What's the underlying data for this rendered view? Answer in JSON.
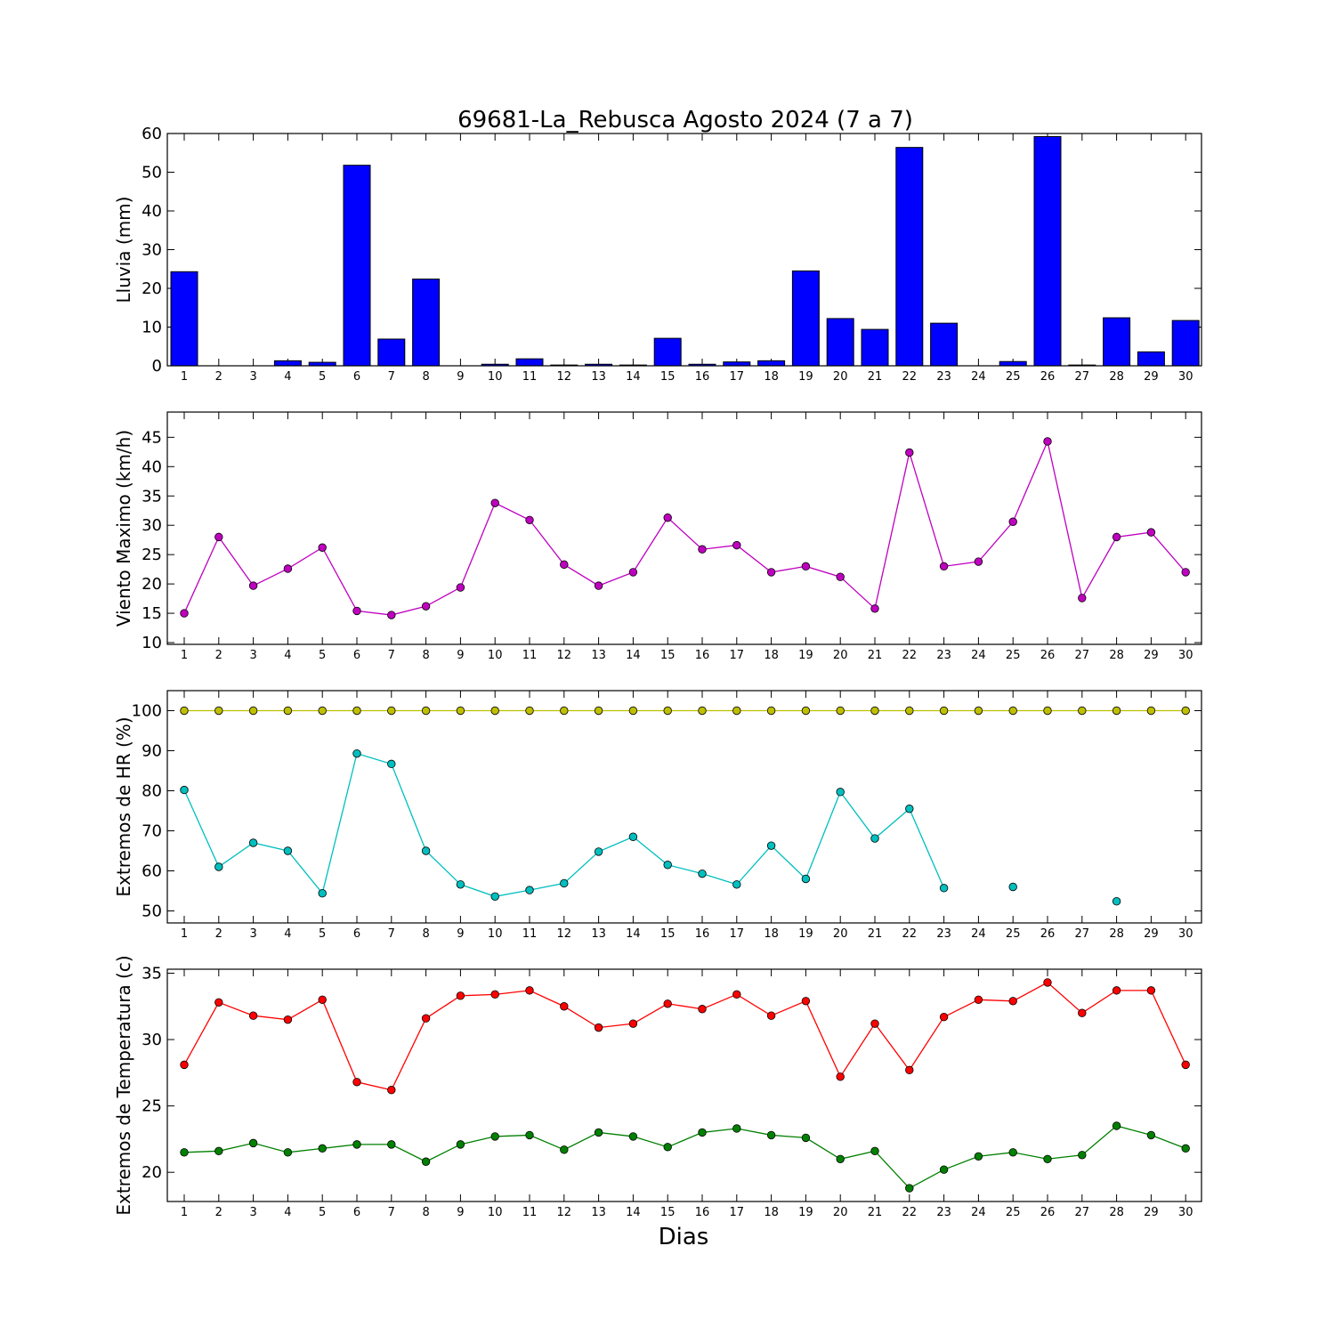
{
  "chart_data": [
    {
      "type": "bar",
      "title": "69681-La_Rebusca Agosto 2024  (7 a 7)",
      "ylabel": "Lluvia (mm)",
      "xlabel": "",
      "ylim": [
        0,
        60
      ],
      "yticks": [
        0,
        10,
        20,
        30,
        40,
        50,
        60
      ],
      "x": [
        1,
        2,
        3,
        4,
        5,
        6,
        7,
        8,
        9,
        10,
        11,
        12,
        13,
        14,
        15,
        16,
        17,
        18,
        19,
        20,
        21,
        22,
        23,
        24,
        25,
        26,
        27,
        28,
        29,
        30
      ],
      "series": [
        {
          "color": "#0000ff",
          "values": [
            24.3,
            0,
            0,
            1.3,
            0.9,
            51.8,
            6.9,
            22.4,
            0,
            0.4,
            1.8,
            0.2,
            0.4,
            0.2,
            7.1,
            0.4,
            1.0,
            1.3,
            24.5,
            12.2,
            9.4,
            56.4,
            11.0,
            0,
            1.1,
            59.2,
            0.2,
            12.4,
            3.6,
            11.7
          ]
        }
      ]
    },
    {
      "type": "line",
      "title": "",
      "ylabel": "Viento Maximo (km/h)",
      "xlabel": "",
      "ylim": [
        9.7,
        49.3
      ],
      "yticks": [
        10,
        15,
        20,
        25,
        30,
        35,
        40,
        45
      ],
      "x": [
        1,
        2,
        3,
        4,
        5,
        6,
        7,
        8,
        9,
        10,
        11,
        12,
        13,
        14,
        15,
        16,
        17,
        18,
        19,
        20,
        21,
        22,
        23,
        24,
        25,
        26,
        27,
        28,
        29,
        30
      ],
      "series": [
        {
          "color": "#bf00bf",
          "values": [
            15.0,
            28.0,
            19.7,
            22.6,
            26.2,
            15.4,
            14.7,
            16.2,
            19.4,
            33.8,
            30.9,
            23.3,
            19.7,
            22.0,
            31.3,
            25.9,
            26.6,
            22.0,
            23.0,
            21.2,
            15.8,
            42.4,
            23.0,
            23.8,
            30.6,
            44.3,
            17.6,
            28.0,
            28.8,
            22.0
          ]
        }
      ]
    },
    {
      "type": "line",
      "title": "",
      "ylabel": "Extremos de HR (%)",
      "xlabel": "",
      "ylim": [
        47,
        105
      ],
      "yticks": [
        50,
        60,
        70,
        80,
        90,
        100
      ],
      "x": [
        1,
        2,
        3,
        4,
        5,
        6,
        7,
        8,
        9,
        10,
        11,
        12,
        13,
        14,
        15,
        16,
        17,
        18,
        19,
        20,
        21,
        22,
        23,
        24,
        25,
        26,
        27,
        28,
        29,
        30
      ],
      "series": [
        {
          "color": "#bfbf00",
          "values": [
            100,
            100,
            100,
            100,
            100,
            100,
            100,
            100,
            100,
            100,
            100,
            100,
            100,
            100,
            100,
            100,
            100,
            100,
            100,
            100,
            100,
            100,
            100,
            100,
            100,
            100,
            100,
            100,
            100,
            100
          ]
        },
        {
          "color": "#00bfbf",
          "values": [
            80.2,
            61.0,
            67.0,
            65.0,
            54.4,
            89.3,
            86.7,
            65.0,
            56.6,
            53.6,
            55.2,
            56.9,
            64.8,
            68.5,
            61.5,
            59.3,
            56.6,
            66.3,
            58.0,
            79.7,
            68.1,
            75.5,
            55.7,
            null,
            56.0,
            null,
            null,
            52.4,
            null,
            null
          ]
        }
      ]
    },
    {
      "type": "line",
      "title": "",
      "ylabel": "Extremos de Temperatura (c)",
      "xlabel": "Dias",
      "ylim": [
        17.8,
        35.3
      ],
      "yticks": [
        20,
        25,
        30,
        35
      ],
      "x": [
        1,
        2,
        3,
        4,
        5,
        6,
        7,
        8,
        9,
        10,
        11,
        12,
        13,
        14,
        15,
        16,
        17,
        18,
        19,
        20,
        21,
        22,
        23,
        24,
        25,
        26,
        27,
        28,
        29,
        30
      ],
      "series": [
        {
          "color": "#ff0000",
          "values": [
            28.1,
            32.8,
            31.8,
            31.5,
            33.0,
            26.8,
            26.2,
            31.6,
            33.3,
            33.4,
            33.7,
            32.5,
            30.9,
            31.2,
            32.7,
            32.3,
            33.4,
            31.8,
            32.9,
            27.2,
            31.2,
            27.7,
            31.7,
            33.0,
            32.9,
            34.3,
            32.0,
            33.7,
            33.7,
            28.1
          ]
        },
        {
          "color": "#008000",
          "values": [
            21.5,
            21.6,
            22.2,
            21.5,
            21.8,
            22.1,
            22.1,
            20.8,
            22.1,
            22.7,
            22.8,
            21.7,
            23.0,
            22.7,
            21.9,
            23.0,
            23.3,
            22.8,
            22.6,
            21.0,
            21.6,
            18.8,
            20.2,
            21.2,
            21.5,
            21.0,
            21.3,
            23.5,
            22.8,
            21.8
          ]
        }
      ]
    }
  ]
}
